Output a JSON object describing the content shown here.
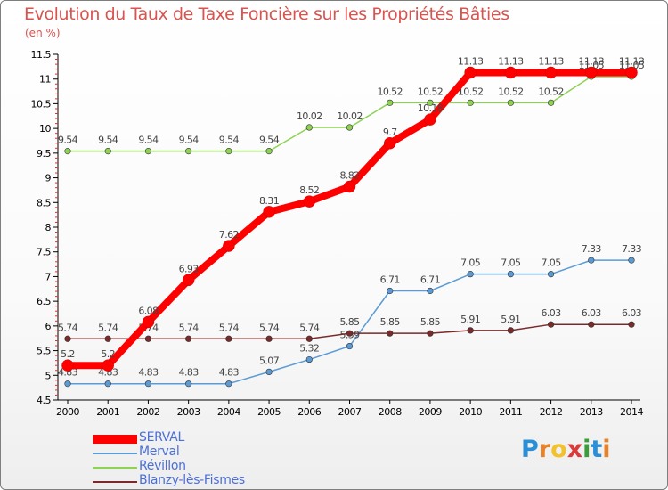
{
  "title": "Evolution du Taux de Taxe Foncière sur les Propriétés Bâties",
  "subtitle": "(en %)",
  "logo_text": "Proxiti",
  "chart_data": {
    "type": "line",
    "title": "Evolution du Taux de Taxe Foncière sur les Propriétés Bâties",
    "ylabel": "(en %)",
    "xlabel": "",
    "ylim": [
      4.5,
      11.5
    ],
    "yticks": [
      "4.5",
      "5",
      "5.5",
      "6",
      "6.5",
      "7",
      "7.5",
      "8",
      "8.5",
      "9",
      "9.5",
      "10",
      "10.5",
      "11",
      "11.5"
    ],
    "x": [
      "2000",
      "2001",
      "2002",
      "2003",
      "2004",
      "2005",
      "2006",
      "2007",
      "2008",
      "2009",
      "2010",
      "2011",
      "2012",
      "2013",
      "2014"
    ],
    "grid": false,
    "legend_position": "bottom-left",
    "series": [
      {
        "name": "SERVAL",
        "color": "#ff0000",
        "values": [
          5.2,
          5.2,
          6.08,
          6.93,
          7.62,
          8.31,
          8.52,
          8.82,
          9.7,
          10.18,
          11.13,
          11.13,
          11.13,
          11.13,
          11.13
        ],
        "labels": [
          "5.2",
          "5.2",
          "6.08",
          "6.93",
          "7.62",
          "8.31",
          "8.52",
          "8.82",
          "9.7",
          "10.18",
          "11.13",
          "11.13",
          "11.13",
          "11.13",
          "11.13"
        ]
      },
      {
        "name": "Merval",
        "color": "#5b9bd5",
        "values": [
          4.83,
          4.83,
          4.83,
          4.83,
          4.83,
          5.07,
          5.32,
          5.59,
          6.71,
          6.71,
          7.05,
          7.05,
          7.05,
          7.33,
          7.33
        ],
        "labels": [
          "4.83",
          "4.83",
          "4.83",
          "4.83",
          "4.83",
          "5.07",
          "5.32",
          "5.59",
          "6.71",
          "6.71",
          "7.05",
          "7.05",
          "7.05",
          "7.33",
          "7.33"
        ]
      },
      {
        "name": "Révillon",
        "color": "#8ed254",
        "values": [
          9.54,
          9.54,
          9.54,
          9.54,
          9.54,
          9.54,
          10.02,
          10.02,
          10.52,
          10.52,
          10.52,
          10.52,
          10.52,
          11.05,
          11.05
        ],
        "labels": [
          "9.54",
          "9.54",
          "9.54",
          "9.54",
          "9.54",
          "9.54",
          "10.02",
          "10.02",
          "10.52",
          "10.52",
          "10.52",
          "10.52",
          "10.52",
          "11.05",
          "11.05"
        ]
      },
      {
        "name": "Blanzy-lès-Fismes",
        "color": "#7a2a2a",
        "values": [
          5.74,
          5.74,
          5.74,
          5.74,
          5.74,
          5.74,
          5.74,
          5.85,
          5.85,
          5.85,
          5.91,
          5.91,
          6.03,
          6.03,
          6.03
        ],
        "labels": [
          "5.74",
          "5.74",
          "5.74",
          "5.74",
          "5.74",
          "5.74",
          "5.74",
          "5.85",
          "5.85",
          "5.85",
          "5.91",
          "5.91",
          "6.03",
          "6.03",
          "6.03"
        ]
      }
    ]
  }
}
